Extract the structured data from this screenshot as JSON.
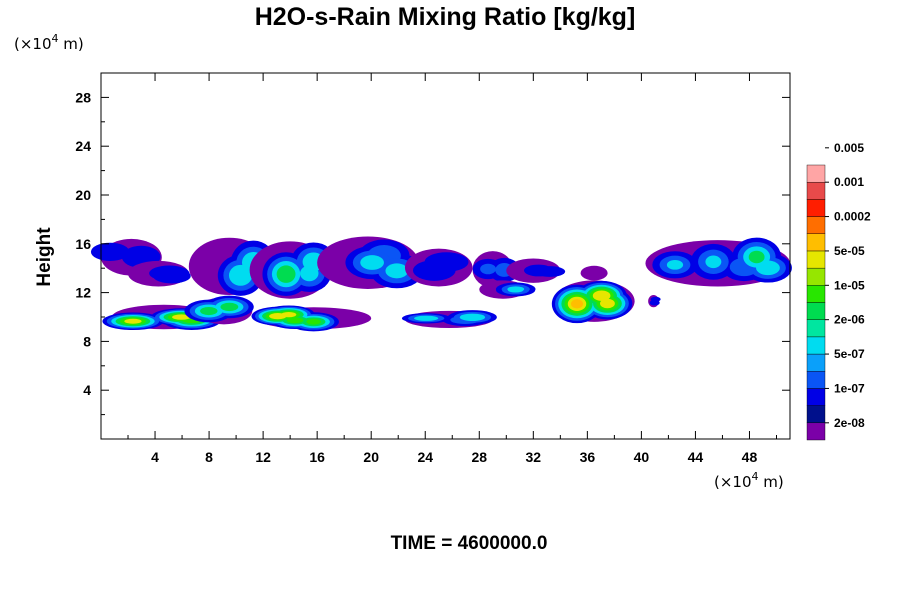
{
  "chart_data": {
    "type": "heatmap",
    "title": "H2O-s-Rain Mixing Ratio [kg/kg]",
    "ylabel": "Height",
    "x_unit_prefix": "(×10",
    "x_unit_exp": "4",
    "x_unit_suffix": " m)",
    "y_unit_prefix": "(×10",
    "y_unit_exp": "4",
    "y_unit_suffix": " m)",
    "xlim": [
      0,
      51
    ],
    "ylim": [
      0,
      30
    ],
    "x_ticks": [
      4,
      8,
      12,
      16,
      20,
      24,
      28,
      32,
      36,
      40,
      44,
      48
    ],
    "y_ticks": [
      4,
      8,
      12,
      16,
      20,
      24,
      28
    ],
    "time_label": "TIME = 4600000.0",
    "colorbar": {
      "colors": [
        "#7b00a8",
        "#00108c",
        "#0000e6",
        "#0a55f5",
        "#0aa0fa",
        "#00dcf0",
        "#00e6a0",
        "#00dc50",
        "#28e600",
        "#96e600",
        "#e6e600",
        "#ffbe00",
        "#ff6e00",
        "#ff1e00",
        "#e84a4a",
        "#ffa5a5"
      ],
      "labels": [
        "2e-08",
        "1e-07",
        "5e-07",
        "2e-06",
        "1e-05",
        "5e-05",
        "0.0002",
        "0.001",
        "0.005"
      ]
    },
    "regions": [
      {
        "x": [
          0,
          4.5
        ],
        "y": [
          13.4,
          16.4
        ],
        "peak": 0.3
      },
      {
        "x": [
          2,
          6.5
        ],
        "y": [
          12.5,
          14.6
        ],
        "peak": 0.28
      },
      {
        "x": [
          6.5,
          12.5
        ],
        "y": [
          11.8,
          16.5
        ],
        "peak": 0.55
      },
      {
        "x": [
          11,
          17
        ],
        "y": [
          11.5,
          16.2
        ],
        "peak": 0.6
      },
      {
        "x": [
          16,
          23.5
        ],
        "y": [
          12.3,
          16.6
        ],
        "peak": 0.55
      },
      {
        "x": [
          22.5,
          27.5
        ],
        "y": [
          12.5,
          15.6
        ],
        "peak": 0.3
      },
      {
        "x": [
          27.5,
          30.5
        ],
        "y": [
          12.4,
          15.4
        ],
        "peak": 0.32
      },
      {
        "x": [
          30,
          34
        ],
        "y": [
          12.8,
          14.8
        ],
        "peak": 0.2
      },
      {
        "x": [
          35.5,
          37.5
        ],
        "y": [
          13.0,
          14.2
        ],
        "peak": 0.15
      },
      {
        "x": [
          40.3,
          51
        ],
        "y": [
          12.5,
          16.3
        ],
        "peak": 0.55
      },
      {
        "x": [
          0.8,
          8.5
        ],
        "y": [
          9.0,
          11.0
        ],
        "peak": 0.92
      },
      {
        "x": [
          7,
          11.2
        ],
        "y": [
          9.4,
          11.6
        ],
        "peak": 0.85
      },
      {
        "x": [
          11.5,
          20
        ],
        "y": [
          9.0,
          10.8
        ],
        "peak": 0.95
      },
      {
        "x": [
          22.5,
          29
        ],
        "y": [
          9.1,
          10.5
        ],
        "peak": 0.5
      },
      {
        "x": [
          28,
          31.5
        ],
        "y": [
          11.5,
          13.0
        ],
        "peak": 0.55
      },
      {
        "x": [
          33.5,
          39.5
        ],
        "y": [
          9.6,
          13.0
        ],
        "peak": 0.9
      },
      {
        "x": [
          40.5,
          41.3
        ],
        "y": [
          10.8,
          11.8
        ],
        "peak": 0.2
      }
    ]
  }
}
